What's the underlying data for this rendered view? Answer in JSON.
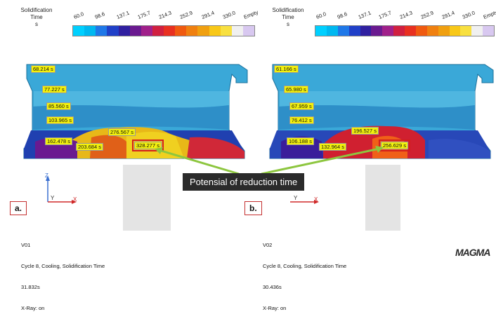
{
  "legend": {
    "title_line1": "Solidification",
    "title_line2": "Time",
    "unit": "s",
    "ticks": [
      "60.0",
      "98.6",
      "137.1",
      "175.7",
      "214.3",
      "252.9",
      "291.4",
      "330.0",
      "Empty"
    ],
    "colors": [
      "#00d0ff",
      "#00b8f0",
      "#1f78e8",
      "#2040c8",
      "#3020a0",
      "#6a1a90",
      "#a0208a",
      "#d02040",
      "#e83020",
      "#f05a10",
      "#f08010",
      "#f0a010",
      "#f8c818",
      "#f8e040",
      "#f0f0f0",
      "#d8c8f0"
    ]
  },
  "left": {
    "labels": [
      "68.214 s",
      "77.227 s",
      "85.560 s",
      "103.965 s",
      "162.478 s",
      "203.684 s",
      "276.567 s",
      "328.277 s"
    ],
    "tag": "a.",
    "info": {
      "line1": "V01",
      "line2": "Cycle 8, Cooling, Solidification Time",
      "line3": "31.832s",
      "line4": "X-Ray: on"
    }
  },
  "right": {
    "labels": [
      "61.166 s",
      "65.980 s",
      "67.959 s",
      "76.412 s",
      "106.188 s",
      "132.964 s",
      "196.527 s",
      "256.629 s"
    ],
    "tag": "b.",
    "info": {
      "line1": "V02",
      "line2": "Cycle 8, Cooling, Solidification Time",
      "line3": "30.436s",
      "line4": "X-Ray: on"
    }
  },
  "callout": "Potensial of reduction time",
  "axes": {
    "z": "Z",
    "y": "Y",
    "x": "X"
  },
  "logo": "MAGMA"
}
